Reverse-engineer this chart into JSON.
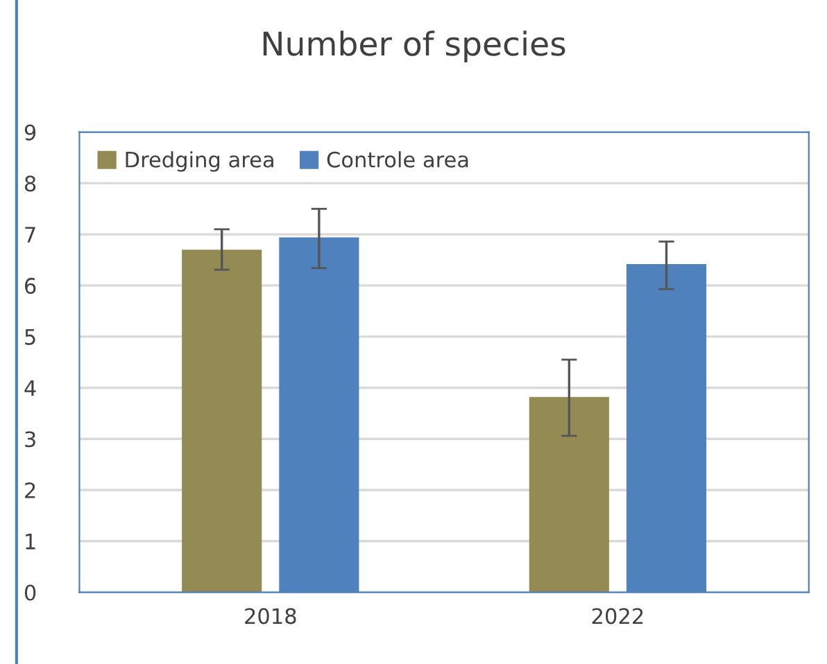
{
  "chart_data": {
    "type": "bar",
    "title": "Number of species",
    "categories": [
      "2018",
      "2022"
    ],
    "series": [
      {
        "name": "Dredging area",
        "color": "#948a54",
        "values": [
          6.7,
          3.82
        ],
        "errors": [
          [
            6.31,
            7.1
          ],
          [
            3.06,
            4.55
          ]
        ]
      },
      {
        "name": "Controle area",
        "color": "#4f81bd",
        "values": [
          6.94,
          6.42
        ],
        "errors": [
          [
            6.34,
            7.5
          ],
          [
            5.93,
            6.86
          ]
        ]
      }
    ],
    "ylim": [
      0,
      9
    ],
    "yticks": [
      0,
      1,
      2,
      3,
      4,
      5,
      6,
      7,
      8,
      9
    ],
    "grid": "y",
    "legend": "top left"
  }
}
